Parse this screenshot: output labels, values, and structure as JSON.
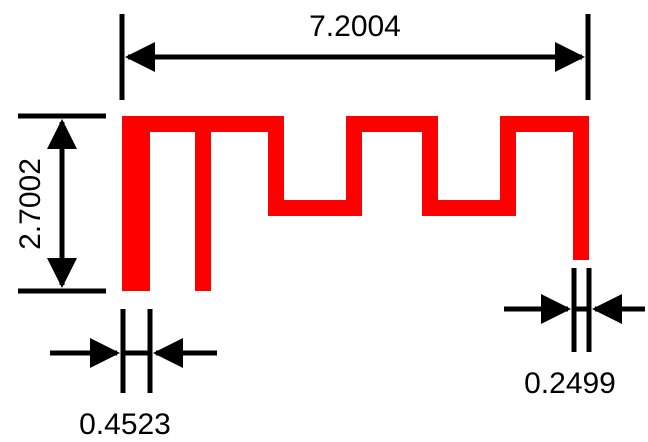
{
  "dimensions": {
    "overall_width": "7.2004",
    "overall_height": "2.7002",
    "feed_width": "0.4523",
    "line_width": "0.2499"
  },
  "colors": {
    "antenna_trace": "#ff0000",
    "dimension_lines": "#000000",
    "background": "#ffffff"
  }
}
